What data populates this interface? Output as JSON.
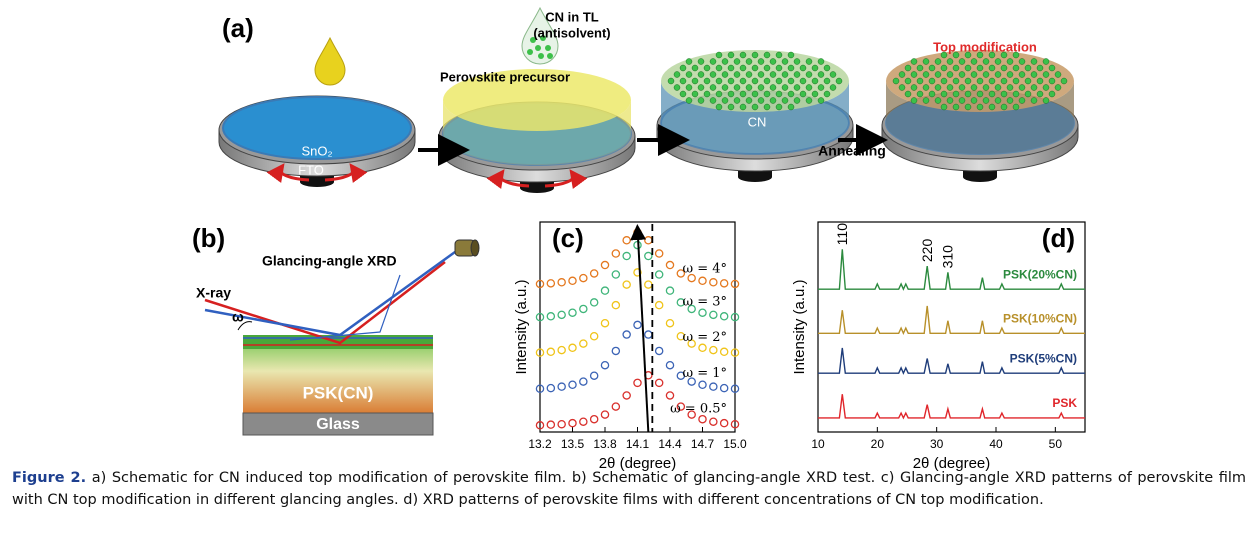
{
  "panel_a": {
    "label": "(a)",
    "drop2_label_1": "CN in TL",
    "drop2_label_2": "(antisolvent)",
    "precursor": "Perovskite precursor",
    "top_modification": "Top modification",
    "sno2": "SnO₂",
    "fto": "FTO",
    "cn": "CN",
    "annealing": "Annealing"
  },
  "panel_b": {
    "label": "(b)",
    "title": "Glancing-angle XRD",
    "xray": "X-ray",
    "omega": "ω",
    "psk": "PSK(CN)",
    "glass": "Glass"
  },
  "chart_data": [
    {
      "type": "scatter",
      "panel_label": "(c)",
      "xlabel": "2θ (degree)",
      "ylabel": "Intensity (a.u.)",
      "xlim": [
        13.2,
        15.0
      ],
      "xticks": [
        13.2,
        13.5,
        13.8,
        14.1,
        14.4,
        14.7,
        {
          "value": 15,
          "label": "15.0"
        }
      ],
      "ylim": [
        0,
        10
      ],
      "x": [
        13.2,
        13.3,
        13.4,
        13.5,
        13.6,
        13.7,
        13.8,
        13.9,
        14.0,
        14.1,
        14.2,
        14.3,
        14.4,
        14.5,
        14.6,
        14.7,
        14.8,
        14.9,
        15.0
      ],
      "series": [
        {
          "name": "ω = 0.5°",
          "color": "#d9302c",
          "values": [
            0.32,
            0.35,
            0.37,
            0.42,
            0.49,
            0.61,
            0.83,
            1.21,
            1.74,
            2.34,
            2.7,
            2.34,
            1.74,
            1.21,
            0.83,
            0.61,
            0.49,
            0.42,
            0.37
          ]
        },
        {
          "name": "ω = 1°",
          "color": "#3b63b5",
          "values": [
            2.06,
            2.09,
            2.16,
            2.25,
            2.4,
            2.68,
            3.18,
            3.86,
            4.64,
            5.1,
            4.64,
            3.86,
            3.18,
            2.68,
            2.4,
            2.25,
            2.16,
            2.09,
            2.06
          ]
        },
        {
          "name": "ω = 2°",
          "color": "#f0c419",
          "values": [
            3.78,
            3.82,
            3.9,
            4.01,
            4.21,
            4.56,
            5.18,
            6.04,
            7.02,
            7.6,
            7.02,
            6.04,
            5.18,
            4.56,
            4.21,
            4.01,
            3.9,
            3.82,
            3.78
          ]
        },
        {
          "name": "ω = 3°",
          "color": "#3fb57a",
          "values": [
            5.47,
            5.51,
            5.58,
            5.68,
            5.86,
            6.17,
            6.73,
            7.5,
            8.38,
            8.9,
            8.38,
            7.5,
            6.73,
            6.17,
            5.86,
            5.68,
            5.58,
            5.51,
            5.47
          ]
        },
        {
          "name": "ω = 4°",
          "color": "#e4781f",
          "values": [
            7.05,
            7.08,
            7.13,
            7.2,
            7.33,
            7.55,
            7.95,
            8.5,
            9.13,
            9.5,
            9.13,
            8.5,
            7.95,
            7.55,
            7.33,
            7.2,
            7.13,
            7.08,
            7.05
          ]
        }
      ]
    },
    {
      "type": "line",
      "panel_label": "(d)",
      "xlabel": "2θ (degree)",
      "ylabel": "Intensity (a.u.)",
      "xlim": [
        10,
        55
      ],
      "xticks": [
        10,
        20,
        30,
        40,
        50
      ],
      "ylim": [
        0,
        10
      ],
      "peak_labels": [
        {
          "label": "110",
          "x": 14.1
        },
        {
          "label": "220",
          "x": 28.4
        },
        {
          "label": "310",
          "x": 31.9
        }
      ],
      "x": [
        10,
        13.6,
        14.1,
        14.6,
        19.6,
        20,
        20.4,
        23.6,
        24,
        24.4,
        24.8,
        25.2,
        27.9,
        28.4,
        28.9,
        31.5,
        31.9,
        32.3,
        37.3,
        37.7,
        38.1,
        40.6,
        41,
        41.4,
        50.6,
        51,
        51.4,
        55
      ],
      "series": [
        {
          "name": "PSK",
          "color": "#e0262b",
          "values": [
            0.67,
            0.67,
            1.8,
            0.67,
            0.67,
            0.9,
            0.67,
            0.67,
            0.9,
            0.67,
            0.9,
            0.67,
            0.67,
            1.3,
            0.67,
            0.67,
            1.1,
            0.67,
            0.67,
            1.1,
            0.67,
            0.67,
            0.9,
            0.67,
            0.67,
            0.9,
            0.67,
            0.67
          ]
        },
        {
          "name": "PSK(5%CN)",
          "color": "#1f3d7a",
          "values": [
            2.8,
            2.8,
            4.0,
            2.8,
            2.8,
            3.05,
            2.8,
            2.8,
            3.05,
            2.8,
            3.05,
            2.8,
            2.8,
            3.5,
            2.8,
            2.8,
            3.25,
            2.8,
            2.8,
            3.35,
            2.8,
            2.8,
            3.05,
            2.8,
            2.8,
            3.05,
            2.8,
            2.8
          ]
        },
        {
          "name": "PSK(10%CN)",
          "color": "#b8902a",
          "values": [
            4.7,
            4.7,
            5.8,
            4.7,
            4.7,
            4.95,
            4.7,
            4.7,
            4.95,
            4.7,
            4.95,
            4.7,
            4.7,
            6.0,
            4.7,
            4.7,
            5.3,
            4.7,
            4.7,
            5.3,
            4.7,
            4.7,
            4.95,
            4.7,
            4.7,
            4.95,
            4.7,
            4.7
          ]
        },
        {
          "name": "PSK(20%CN)",
          "color": "#2b8a3e",
          "values": [
            6.8,
            6.8,
            8.7,
            6.8,
            6.8,
            7.05,
            6.8,
            6.8,
            7.05,
            6.8,
            7.05,
            6.8,
            6.8,
            7.9,
            6.8,
            6.8,
            7.6,
            6.8,
            6.8,
            7.35,
            6.8,
            6.8,
            7.05,
            6.8,
            6.8,
            7.05,
            6.8,
            6.8
          ]
        }
      ]
    }
  ],
  "caption": {
    "label": "Figure 2.",
    "text": "a) Schematic for CN induced top modification of perovskite film. b) Schematic of glancing-angle XRD test. c) Glancing-angle XRD patterns of perovskite film with CN top modification in different glancing angles. d) XRD patterns of perovskite films with different concentrations of CN top modification."
  }
}
